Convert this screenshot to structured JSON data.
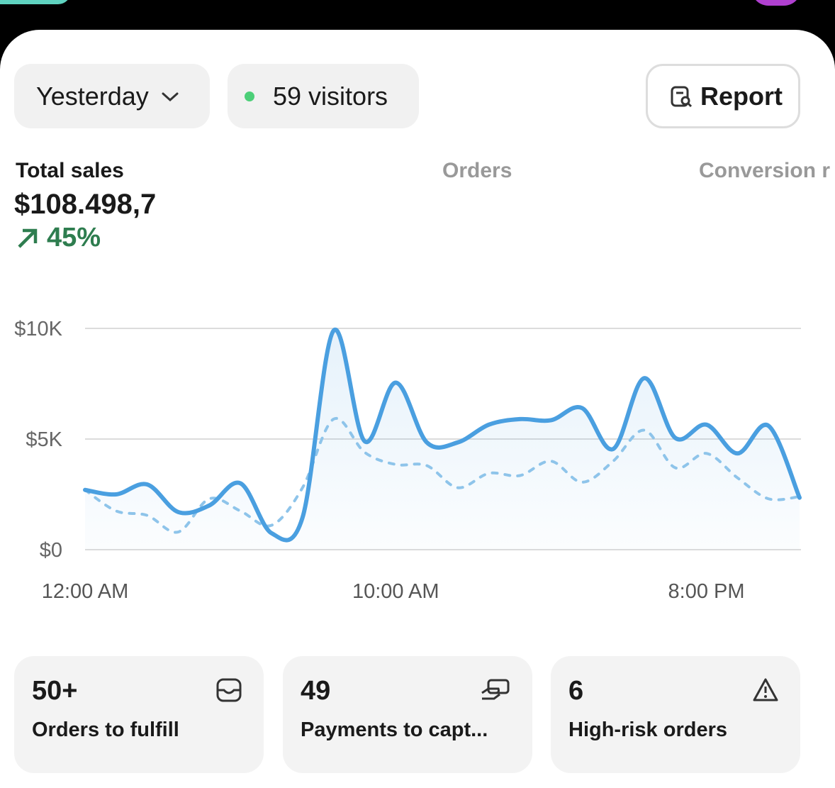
{
  "filters": {
    "period": "Yesterday",
    "visitors": "59 visitors",
    "report": "Report"
  },
  "metrics": {
    "tabs": [
      "Total sales",
      "Orders",
      "Conversion r"
    ],
    "total_sales": "$108.498,7",
    "change": "45%"
  },
  "chart_data": {
    "type": "line",
    "x": [
      0,
      1,
      2,
      3,
      4,
      5,
      6,
      7,
      8,
      9,
      10,
      11,
      12,
      13,
      14,
      15,
      16,
      17,
      18,
      19,
      20,
      21,
      22,
      23
    ],
    "xlim": [
      0,
      23
    ],
    "xticks": [
      {
        "value": 0,
        "label": "12:00 AM"
      },
      {
        "value": 10,
        "label": "10:00 AM"
      },
      {
        "value": 20,
        "label": "8:00 PM"
      }
    ],
    "ylim": [
      0,
      10000
    ],
    "yticks": [
      {
        "value": 0,
        "label": "$0"
      },
      {
        "value": 5000,
        "label": "$5K"
      },
      {
        "value": 10000,
        "label": "$10K"
      }
    ],
    "grid": true,
    "series": [
      {
        "color": "#4a9fe0",
        "dashed": false,
        "fill": true,
        "values": [
          2700,
          2500,
          2950,
          1700,
          2000,
          3000,
          750,
          1450,
          9900,
          4900,
          7550,
          4850,
          4850,
          5650,
          5900,
          5850,
          6400,
          4550,
          7750,
          5050,
          5650,
          4350,
          5600,
          2350
        ]
      },
      {
        "color": "#8ec4ea",
        "dashed": true,
        "fill": false,
        "values": [
          2700,
          1750,
          1550,
          800,
          2300,
          1750,
          1100,
          2800,
          5900,
          4400,
          3850,
          3800,
          2800,
          3450,
          3350,
          4000,
          3050,
          4000,
          5400,
          3700,
          4350,
          3250,
          2300,
          2400
        ]
      }
    ]
  },
  "cards": [
    {
      "value": "50+",
      "label": "Orders to fulfill"
    },
    {
      "value": "49",
      "label": "Payments to capt..."
    },
    {
      "value": "6",
      "label": "High-risk orders"
    }
  ]
}
